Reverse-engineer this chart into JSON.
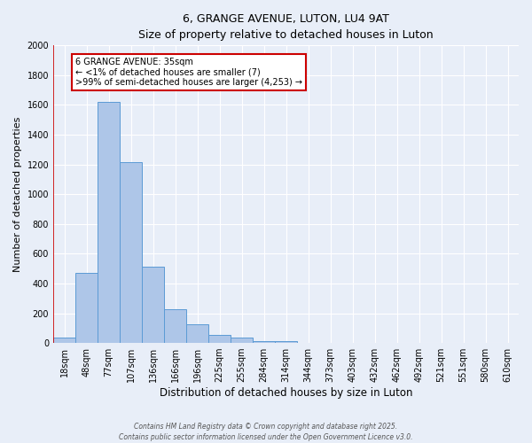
{
  "title1": "6, GRANGE AVENUE, LUTON, LU4 9AT",
  "title2": "Size of property relative to detached houses in Luton",
  "xlabel": "Distribution of detached houses by size in Luton",
  "ylabel": "Number of detached properties",
  "categories": [
    "18sqm",
    "48sqm",
    "77sqm",
    "107sqm",
    "136sqm",
    "166sqm",
    "196sqm",
    "225sqm",
    "255sqm",
    "284sqm",
    "314sqm",
    "344sqm",
    "373sqm",
    "403sqm",
    "432sqm",
    "462sqm",
    "492sqm",
    "521sqm",
    "551sqm",
    "580sqm",
    "610sqm"
  ],
  "values": [
    35,
    470,
    1620,
    1215,
    510,
    225,
    125,
    55,
    35,
    15,
    10,
    0,
    0,
    0,
    0,
    0,
    0,
    0,
    0,
    0,
    0
  ],
  "bar_color": "#aec6e8",
  "bar_edge_color": "#5b9bd5",
  "annotation_title": "6 GRANGE AVENUE: 35sqm",
  "annotation_line1": "← <1% of detached houses are smaller (7)",
  "annotation_line2": ">99% of semi-detached houses are larger (4,253) →",
  "annotation_box_color": "#ffffff",
  "annotation_box_edge": "#cc0000",
  "vline_color": "#cc0000",
  "bg_color": "#e8eef8",
  "grid_color": "#ffffff",
  "ylim": [
    0,
    2000
  ],
  "yticks": [
    0,
    200,
    400,
    600,
    800,
    1000,
    1200,
    1400,
    1600,
    1800,
    2000
  ],
  "footer1": "Contains HM Land Registry data © Crown copyright and database right 2025.",
  "footer2": "Contains public sector information licensed under the Open Government Licence v3.0."
}
